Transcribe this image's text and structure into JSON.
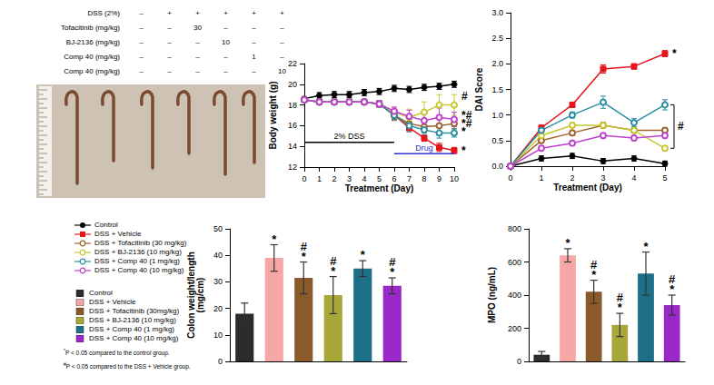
{
  "treatment_table": {
    "rows": [
      {
        "label": "DSS (2%)",
        "cells": [
          "–",
          "+",
          "+",
          "+",
          "+",
          "+"
        ]
      },
      {
        "label": "Tofacitinib (mg/kg)",
        "cells": [
          "–",
          "–",
          "30",
          "–",
          "–",
          "–"
        ]
      },
      {
        "label": "BJ-2136 (mg/kg)",
        "cells": [
          "–",
          "–",
          "–",
          "10",
          "–",
          "–"
        ]
      },
      {
        "label": "Comp 40 (mg/kg)",
        "cells": [
          "–",
          "–",
          "–",
          "–",
          "1",
          "–"
        ]
      },
      {
        "label": "Comp 40 (mg/kg)",
        "cells": [
          "–",
          "–",
          "–",
          "–",
          "–",
          "10"
        ]
      }
    ]
  },
  "footnotes": [
    "*P < 0.05 compared to the control group.",
    "#P < 0.05 compared to the DSS + Vehicle group."
  ],
  "chart_data": [
    {
      "type": "line",
      "y_label": "Body weight (g)",
      "x_label": "Treatment (Day)",
      "x": [
        0,
        1,
        2,
        3,
        4,
        5,
        6,
        7,
        8,
        9,
        10
      ],
      "xlim": [
        0,
        10
      ],
      "xticks": [
        0,
        1,
        2,
        3,
        4,
        5,
        6,
        7,
        8,
        9,
        10
      ],
      "ylim": [
        12,
        22
      ],
      "yticks": [
        12,
        14,
        16,
        18,
        20,
        22
      ],
      "grid": false,
      "series": [
        {
          "name": "Control",
          "color": "#000000",
          "marker": "circle",
          "values": [
            18.6,
            18.9,
            19.0,
            19.0,
            19.2,
            19.3,
            19.6,
            19.5,
            19.7,
            19.8,
            20.0
          ],
          "errors": [
            0.2,
            0.3,
            0.3,
            0.3,
            0.3,
            0.3,
            0.3,
            0.3,
            0.3,
            0.3,
            0.3
          ]
        },
        {
          "name": "DSS + Vehicle",
          "color": "#e8141b",
          "marker": "square",
          "values": [
            18.5,
            18.3,
            18.3,
            18.3,
            18.3,
            18.1,
            17.0,
            15.8,
            14.8,
            13.9,
            13.6
          ],
          "errors": [
            0.2,
            0.2,
            0.2,
            0.2,
            0.2,
            0.3,
            0.4,
            0.3,
            0.3,
            0.4,
            0.3
          ]
        },
        {
          "name": "DSS + Tofacitinib (30 mg/kg)",
          "color": "#a0622d",
          "marker": "open_circle",
          "values": [
            18.5,
            18.3,
            18.3,
            18.3,
            18.3,
            18.1,
            17.0,
            16.2,
            15.9,
            16.0,
            16.2
          ],
          "errors": [
            0.2,
            0.2,
            0.2,
            0.2,
            0.2,
            0.3,
            0.5,
            0.6,
            0.6,
            0.6,
            0.5
          ]
        },
        {
          "name": "DSS + BJ-2136 (10 mg/kg)",
          "color": "#c8c832",
          "marker": "open_circle",
          "values": [
            18.5,
            18.3,
            18.3,
            18.3,
            18.3,
            18.1,
            17.3,
            16.8,
            17.3,
            18.0,
            18.0
          ],
          "errors": [
            0.2,
            0.2,
            0.2,
            0.2,
            0.2,
            0.3,
            0.4,
            0.8,
            1.0,
            1.0,
            1.0
          ]
        },
        {
          "name": "DSS + Comp 40 (1 mg/kg)",
          "color": "#2a8f9f",
          "marker": "open_circle",
          "values": [
            18.5,
            18.3,
            18.3,
            18.3,
            18.3,
            18.1,
            17.0,
            16.0,
            15.6,
            15.3,
            15.3
          ],
          "errors": [
            0.2,
            0.2,
            0.2,
            0.2,
            0.2,
            0.3,
            0.4,
            0.6,
            0.5,
            0.5,
            0.4
          ]
        },
        {
          "name": "DSS + Comp 40 (10 mg/kg)",
          "color": "#c040d0",
          "marker": "open_circle",
          "values": [
            18.5,
            18.3,
            18.3,
            18.3,
            18.3,
            18.1,
            17.4,
            16.9,
            16.5,
            16.8,
            16.6
          ],
          "errors": [
            0.2,
            0.2,
            0.2,
            0.2,
            0.2,
            0.3,
            0.4,
            0.6,
            0.8,
            0.9,
            0.7
          ]
        }
      ],
      "annotations": [
        {
          "text": "#",
          "x": 10,
          "y": 18.8
        },
        {
          "text": "*#",
          "x": 10,
          "y": 17.0
        },
        {
          "text": "*#",
          "x": 10,
          "y": 16.2
        },
        {
          "text": "*",
          "x": 10,
          "y": 15.4
        },
        {
          "text": "*",
          "x": 10,
          "y": 13.6
        }
      ],
      "periods": [
        {
          "text": "2% DSS",
          "x": [
            0,
            6
          ],
          "y": 14.4,
          "color": "#000000"
        },
        {
          "text": "Drug",
          "x": [
            6,
            10
          ],
          "y": 13.3,
          "color": "#3333cc"
        }
      ]
    },
    {
      "type": "line",
      "y_label": "DAI Score",
      "x_label": "Treatment (Day)",
      "x": [
        0,
        1,
        2,
        3,
        4,
        5
      ],
      "xlim": [
        0,
        5
      ],
      "xticks": [
        0,
        1,
        2,
        3,
        4,
        5
      ],
      "ylim": [
        0,
        3
      ],
      "yticks": [
        {
          "value": 0,
          "label": "0.0"
        },
        0.5,
        {
          "value": 1,
          "label": "1.0"
        },
        1.5,
        {
          "value": 2,
          "label": "2.0"
        },
        2.5,
        {
          "value": 3,
          "label": "3.0"
        }
      ],
      "grid": false,
      "series": [
        {
          "name": "Control",
          "color": "#000000",
          "marker": "circle",
          "values": [
            0,
            0.15,
            0.2,
            0.1,
            0.15,
            0.05
          ],
          "errors": [
            0,
            0.05,
            0.05,
            0.05,
            0.05,
            0.05
          ]
        },
        {
          "name": "DSS + Vehicle",
          "color": "#e8141b",
          "marker": "square",
          "values": [
            0,
            0.75,
            1.2,
            1.9,
            1.95,
            2.2
          ],
          "errors": [
            0,
            0.05,
            0.05,
            0.08,
            0.05,
            0.06
          ]
        },
        {
          "name": "DSS + Tofacitinib (30 mg/kg)",
          "color": "#a0622d",
          "marker": "open_circle",
          "values": [
            0,
            0.5,
            0.65,
            0.8,
            0.7,
            0.7
          ],
          "errors": [
            0,
            0.05,
            0.05,
            0.05,
            0.05,
            0.05
          ]
        },
        {
          "name": "DSS + BJ-2136 (10 mg/kg)",
          "color": "#c8c832",
          "marker": "open_circle",
          "values": [
            0,
            0.6,
            0.8,
            0.8,
            0.7,
            0.35
          ],
          "errors": [
            0,
            0.05,
            0.05,
            0.05,
            0.05,
            0.05
          ]
        },
        {
          "name": "DSS + Comp 40 (1 mg/kg)",
          "color": "#2a8f9f",
          "marker": "open_circle",
          "values": [
            0,
            0.7,
            1.0,
            1.25,
            0.85,
            1.2
          ],
          "errors": [
            0,
            0.05,
            0.06,
            0.12,
            0.08,
            0.1
          ]
        },
        {
          "name": "DSS + Comp 40 (10 mg/kg)",
          "color": "#c040d0",
          "marker": "open_circle",
          "values": [
            0,
            0.35,
            0.45,
            0.6,
            0.55,
            0.6
          ],
          "errors": [
            0,
            0.05,
            0.05,
            0.05,
            0.05,
            0.05
          ]
        }
      ],
      "annotations": [
        {
          "text": "*",
          "x": 5,
          "y": 2.2
        },
        {
          "text": "#",
          "x": 5,
          "y": 0.78,
          "span": [
            0.35,
            1.2
          ]
        }
      ]
    },
    {
      "type": "bar",
      "y_label": "Colon weight/length\n(mg/cm)",
      "categories": [
        "Control",
        "DSS + Vehicle",
        "DSS + Tofacitinib (30mg/kg)",
        "DSS + BJ-2136 (10 mg/kg)",
        "DSS + Comp 40 (1 mg/kg)",
        "DSS + Comp 40 (10 mg/kg)"
      ],
      "colors": [
        "#2b2b2b",
        "#f7a6a6",
        "#8b5a2b",
        "#a8a83a",
        "#1c6f86",
        "#9a28c8"
      ],
      "values": [
        18,
        39,
        31.5,
        25,
        35,
        28.5
      ],
      "errors": [
        4,
        5,
        6,
        7,
        3,
        3
      ],
      "sig_labels": [
        null,
        "*",
        "#*",
        "#*",
        "*",
        "#*"
      ],
      "ylim": [
        0,
        50
      ],
      "yticks": [
        0,
        10,
        20,
        30,
        40,
        50
      ],
      "grid": false,
      "tick_labels": "y"
    },
    {
      "type": "bar",
      "y_label": "MPO (ng/mL)",
      "categories": [
        "Control",
        "DSS + Vehicle",
        "DSS + Tofacitinib (30mg/kg)",
        "DSS + BJ-2136 (10 mg/kg)",
        "DSS + Comp 40 (1 mg/kg)",
        "DSS + Comp 40 (10 mg/kg)"
      ],
      "colors": [
        "#2b2b2b",
        "#f7a6a6",
        "#8b5a2b",
        "#a8a83a",
        "#1c6f86",
        "#9a28c8"
      ],
      "values": [
        40,
        640,
        420,
        220,
        530,
        340
      ],
      "errors": [
        20,
        40,
        70,
        70,
        130,
        60
      ],
      "sig_labels": [
        null,
        "*",
        "#*",
        "#*",
        "*",
        "#*"
      ],
      "ylim": [
        0,
        800
      ],
      "yticks": [
        0,
        200,
        400,
        600,
        800
      ],
      "grid": false,
      "tick_labels": "y"
    }
  ]
}
